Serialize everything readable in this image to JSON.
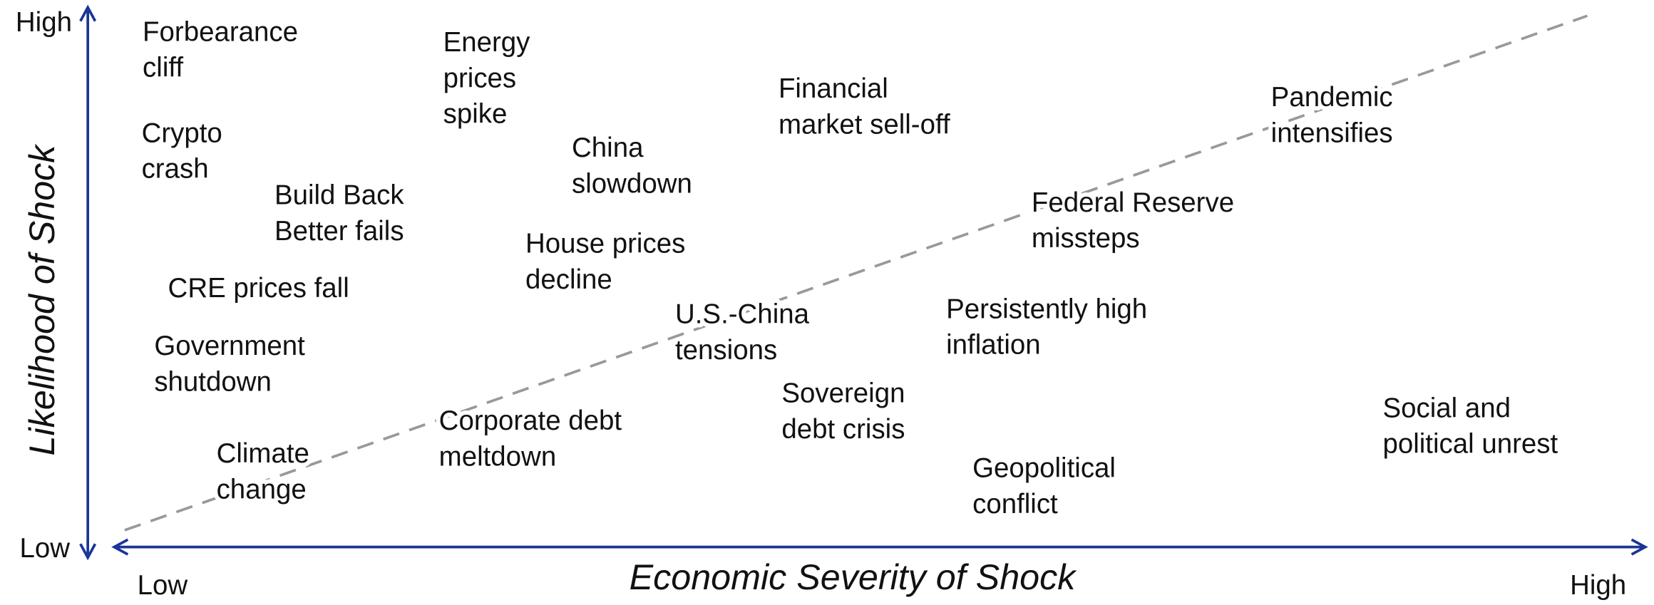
{
  "axes": {
    "x_title": "Economic Severity of Shock",
    "y_title": "Likelihood of Shock",
    "x_low": "Low",
    "x_high": "High",
    "y_low": "Low",
    "y_high": "High"
  },
  "nodes": [
    {
      "lines": [
        "Forbearance",
        "cliff"
      ]
    },
    {
      "lines": [
        "Energy",
        "prices",
        "spike"
      ]
    },
    {
      "lines": [
        "Financial",
        "market sell-off"
      ]
    },
    {
      "lines": [
        "Pandemic",
        "intensifies"
      ]
    },
    {
      "lines": [
        "Crypto",
        "crash"
      ]
    },
    {
      "lines": [
        "China",
        "slowdown"
      ]
    },
    {
      "lines": [
        "Build Back",
        "Better fails"
      ]
    },
    {
      "lines": [
        "Federal Reserve",
        "missteps"
      ]
    },
    {
      "lines": [
        "House prices",
        "decline"
      ]
    },
    {
      "lines": [
        "CRE prices fall"
      ]
    },
    {
      "lines": [
        "U.S.-China",
        "tensions"
      ]
    },
    {
      "lines": [
        "Persistently high",
        "inflation"
      ]
    },
    {
      "lines": [
        "Government",
        "shutdown"
      ]
    },
    {
      "lines": [
        "Sovereign",
        "debt crisis"
      ]
    },
    {
      "lines": [
        "Social and",
        "political unrest"
      ]
    },
    {
      "lines": [
        "Corporate debt",
        "meltdown"
      ]
    },
    {
      "lines": [
        "Climate",
        "change"
      ]
    },
    {
      "lines": [
        "Geopolitical",
        "conflict"
      ]
    }
  ]
}
